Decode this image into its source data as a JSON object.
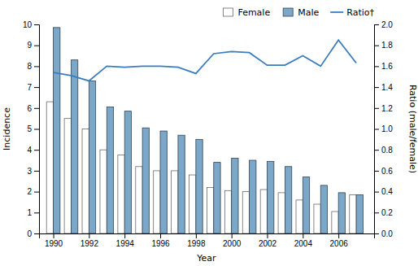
{
  "chart_data": {
    "type": "bar",
    "xlabel": "Year",
    "ylabel": "Incidence",
    "y2label": "Ratio (male/female)",
    "x": [
      1990,
      1991,
      1992,
      1993,
      1994,
      1995,
      1996,
      1997,
      1998,
      1999,
      2000,
      2001,
      2002,
      2003,
      2004,
      2005,
      2006,
      2007
    ],
    "series": [
      {
        "name": "Female",
        "color": "#ffffff",
        "values": [
          6.3,
          5.5,
          5.0,
          4.0,
          3.75,
          3.2,
          3.0,
          3.0,
          2.8,
          2.2,
          2.05,
          2.0,
          2.1,
          1.95,
          1.6,
          1.4,
          1.05,
          1.85
        ]
      },
      {
        "name": "Male",
        "color": "#7ba7c9",
        "values": [
          9.85,
          8.3,
          7.3,
          6.05,
          5.85,
          5.05,
          4.9,
          4.7,
          4.5,
          3.4,
          3.6,
          3.5,
          3.45,
          3.2,
          2.7,
          2.3,
          1.95,
          1.85
        ]
      },
      {
        "name": "Ratio†",
        "type": "line",
        "axis": "y2",
        "color": "#3a7dbf",
        "values": [
          1.54,
          1.51,
          1.46,
          1.6,
          1.59,
          1.6,
          1.6,
          1.59,
          1.53,
          1.72,
          1.74,
          1.73,
          1.61,
          1.61,
          1.7,
          1.6,
          1.85,
          1.63
        ]
      }
    ],
    "xlim": [
      1989.2,
      2008.0
    ],
    "xticks": [
      1990,
      1992,
      1994,
      1996,
      1998,
      2000,
      2002,
      2004,
      2006
    ],
    "ylim": [
      0,
      10
    ],
    "yticks": [
      0,
      1,
      2,
      3,
      4,
      5,
      6,
      7,
      8,
      9,
      10
    ],
    "y2lim": [
      0,
      2.0
    ],
    "y2ticks": [
      {
        "value": 0,
        "label": "0.0"
      },
      0.2,
      0.4,
      0.6,
      0.8,
      {
        "value": 1,
        "label": "1.0"
      },
      1.2,
      1.4,
      1.6,
      1.8,
      {
        "value": 2,
        "label": "2.0"
      }
    ],
    "grid": false,
    "legend": "upper right"
  }
}
